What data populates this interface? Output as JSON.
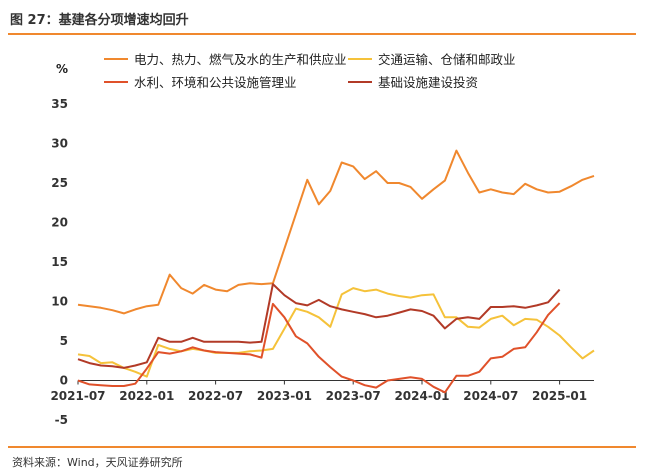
{
  "figure": {
    "title": "图 27：基建各分项增速均回升",
    "source": "资料来源：Wind，天风证券研究所",
    "unit": "%"
  },
  "colors": {
    "accent": "#f0882e",
    "power": "#f0882e",
    "transport": "#f5c23a",
    "water": "#e0512a",
    "infra": "#b23a27"
  },
  "chart_data": {
    "type": "line",
    "title": "",
    "xlabel": "",
    "ylabel": "%",
    "ylim": [
      -5,
      35
    ],
    "yticks": [
      -5,
      0,
      5,
      10,
      15,
      20,
      25,
      30,
      35
    ],
    "xtick_labels": [
      "2021-07",
      "2022-01",
      "2022-07",
      "2023-01",
      "2023-07",
      "2024-01",
      "2024-07",
      "2025-01"
    ],
    "xtick_positions": [
      0,
      6,
      12,
      18,
      24,
      30,
      36,
      42
    ],
    "x_months": [
      "2021-07",
      "2021-08",
      "2021-09",
      "2021-10",
      "2021-11",
      "2021-12",
      "2022-01",
      "2022-02",
      "2022-03",
      "2022-04",
      "2022-05",
      "2022-06",
      "2022-07",
      "2022-08",
      "2022-09",
      "2022-10",
      "2022-11",
      "2022-12",
      "2023-01",
      "2023-02",
      "2023-03",
      "2023-04",
      "2023-05",
      "2023-06",
      "2023-07",
      "2023-08",
      "2023-09",
      "2023-10",
      "2023-11",
      "2023-12",
      "2024-01",
      "2024-02",
      "2024-03",
      "2024-04",
      "2024-05",
      "2024-06",
      "2024-07",
      "2024-08",
      "2024-09",
      "2024-10",
      "2024-11",
      "2024-12",
      "2025-01",
      "2025-02",
      "2025-03",
      "2025-04"
    ],
    "legend_position": "top",
    "series": [
      {
        "name": "电力、热力、燃气及水的生产和供应业",
        "color_key": "power",
        "points": [
          [
            0,
            9.6
          ],
          [
            1,
            9.4
          ],
          [
            2,
            9.2
          ],
          [
            3,
            8.9
          ],
          [
            4,
            8.5
          ],
          [
            5,
            9.0
          ],
          [
            6,
            9.4
          ],
          [
            7,
            9.6
          ],
          [
            8,
            13.4
          ],
          [
            9,
            11.7
          ],
          [
            10,
            11.0
          ],
          [
            11,
            12.1
          ],
          [
            12,
            11.5
          ],
          [
            13,
            11.3
          ],
          [
            14,
            12.1
          ],
          [
            15,
            12.3
          ],
          [
            16,
            12.2
          ],
          [
            17,
            12.3
          ],
          [
            20,
            25.4
          ],
          [
            21,
            22.3
          ],
          [
            22,
            24.0
          ],
          [
            23,
            27.6
          ],
          [
            24,
            27.1
          ],
          [
            25,
            25.5
          ],
          [
            26,
            26.5
          ],
          [
            27,
            25.0
          ],
          [
            28,
            25.0
          ],
          [
            29,
            24.5
          ],
          [
            30,
            23.0
          ],
          [
            31,
            24.2
          ],
          [
            32,
            25.3
          ],
          [
            33,
            29.1
          ],
          [
            34,
            26.3
          ],
          [
            35,
            23.8
          ],
          [
            36,
            24.2
          ],
          [
            37,
            23.8
          ],
          [
            38,
            23.6
          ],
          [
            39,
            24.9
          ],
          [
            40,
            24.2
          ],
          [
            41,
            23.8
          ],
          [
            42,
            23.9
          ],
          [
            43,
            24.6
          ],
          [
            44,
            25.4
          ],
          [
            45,
            25.9
          ]
        ]
      },
      {
        "name": "交通运输、仓储和邮政业",
        "color_key": "transport",
        "points": [
          [
            0,
            3.3
          ],
          [
            1,
            3.1
          ],
          [
            2,
            2.2
          ],
          [
            3,
            2.3
          ],
          [
            4,
            1.6
          ],
          [
            5,
            1.1
          ],
          [
            6,
            0.5
          ],
          [
            7,
            4.5
          ],
          [
            8,
            4.0
          ],
          [
            9,
            3.7
          ],
          [
            10,
            4.0
          ],
          [
            11,
            3.8
          ],
          [
            12,
            3.5
          ],
          [
            13,
            3.5
          ],
          [
            14,
            3.5
          ],
          [
            15,
            3.7
          ],
          [
            16,
            3.8
          ],
          [
            17,
            4.0
          ],
          [
            19,
            9.1
          ],
          [
            20,
            8.7
          ],
          [
            21,
            8.0
          ],
          [
            22,
            6.8
          ],
          [
            23,
            10.9
          ],
          [
            24,
            11.7
          ],
          [
            25,
            11.3
          ],
          [
            26,
            11.5
          ],
          [
            27,
            11.0
          ],
          [
            28,
            10.7
          ],
          [
            29,
            10.5
          ],
          [
            30,
            10.8
          ],
          [
            31,
            10.9
          ],
          [
            32,
            8.0
          ],
          [
            33,
            8.0
          ],
          [
            34,
            6.8
          ],
          [
            35,
            6.7
          ],
          [
            36,
            7.8
          ],
          [
            37,
            8.2
          ],
          [
            38,
            7.0
          ],
          [
            39,
            7.8
          ],
          [
            40,
            7.7
          ],
          [
            41,
            6.8
          ],
          [
            42,
            5.7
          ],
          [
            43,
            4.2
          ],
          [
            44,
            2.8
          ],
          [
            45,
            3.8
          ]
        ]
      },
      {
        "name": "水利、环境和公共设施管理业",
        "color_key": "water",
        "points": [
          [
            0,
            0.0
          ],
          [
            1,
            -0.5
          ],
          [
            2,
            -0.6
          ],
          [
            3,
            -0.7
          ],
          [
            4,
            -0.7
          ],
          [
            5,
            -0.4
          ],
          [
            6,
            1.5
          ],
          [
            7,
            3.6
          ],
          [
            8,
            3.4
          ],
          [
            9,
            3.7
          ],
          [
            10,
            4.2
          ],
          [
            11,
            3.8
          ],
          [
            12,
            3.6
          ],
          [
            13,
            3.5
          ],
          [
            14,
            3.4
          ],
          [
            15,
            3.3
          ],
          [
            16,
            2.9
          ],
          [
            17,
            9.7
          ],
          [
            18,
            8.0
          ],
          [
            19,
            5.6
          ],
          [
            20,
            4.7
          ],
          [
            21,
            3.0
          ],
          [
            22,
            1.7
          ],
          [
            23,
            0.5
          ],
          [
            24,
            0.0
          ],
          [
            25,
            -0.6
          ],
          [
            26,
            -0.9
          ],
          [
            27,
            0.0
          ],
          [
            28,
            0.2
          ],
          [
            29,
            0.4
          ],
          [
            30,
            0.2
          ],
          [
            31,
            -0.8
          ],
          [
            32,
            -1.5
          ],
          [
            33,
            0.6
          ],
          [
            34,
            0.6
          ],
          [
            35,
            1.1
          ],
          [
            36,
            2.8
          ],
          [
            37,
            3.0
          ],
          [
            38,
            4.0
          ],
          [
            39,
            4.2
          ],
          [
            40,
            6.1
          ],
          [
            41,
            8.3
          ],
          [
            42,
            9.8
          ]
        ]
      },
      {
        "name": "基础设施建设投资",
        "color_key": "infra",
        "points": [
          [
            0,
            2.7
          ],
          [
            1,
            2.2
          ],
          [
            2,
            1.9
          ],
          [
            3,
            1.8
          ],
          [
            4,
            1.6
          ],
          [
            5,
            1.9
          ],
          [
            6,
            2.3
          ],
          [
            7,
            5.4
          ],
          [
            8,
            4.9
          ],
          [
            9,
            4.9
          ],
          [
            10,
            5.4
          ],
          [
            11,
            4.9
          ],
          [
            12,
            4.9
          ],
          [
            13,
            4.9
          ],
          [
            14,
            4.9
          ],
          [
            15,
            4.8
          ],
          [
            16,
            4.9
          ],
          [
            17,
            12.2
          ],
          [
            18,
            10.8
          ],
          [
            19,
            9.8
          ],
          [
            20,
            9.5
          ],
          [
            21,
            10.2
          ],
          [
            22,
            9.4
          ],
          [
            23,
            9.0
          ],
          [
            24,
            8.7
          ],
          [
            25,
            8.4
          ],
          [
            26,
            8.0
          ],
          [
            27,
            8.2
          ],
          [
            28,
            8.6
          ],
          [
            29,
            9.0
          ],
          [
            30,
            8.8
          ],
          [
            31,
            8.2
          ],
          [
            32,
            6.6
          ],
          [
            33,
            7.8
          ],
          [
            34,
            8.0
          ],
          [
            35,
            7.8
          ],
          [
            36,
            9.3
          ],
          [
            37,
            9.3
          ],
          [
            38,
            9.4
          ],
          [
            39,
            9.2
          ],
          [
            40,
            9.5
          ],
          [
            41,
            9.9
          ],
          [
            42,
            11.5
          ]
        ]
      }
    ]
  }
}
